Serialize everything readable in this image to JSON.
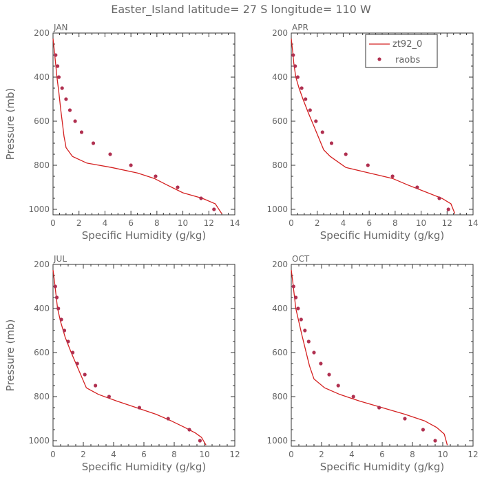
{
  "figure": {
    "title": "Easter_Island  latitude= 27 S longitude= 110 W"
  },
  "legend": {
    "model_label": "zt92_0",
    "obs_label": "raobs"
  },
  "colors": {
    "model": "#d42020",
    "obs": "#b03050",
    "axis": "#333333",
    "text": "#666666"
  },
  "chart_data": [
    {
      "type": "line",
      "title": "JAN",
      "xlabel": "Specific Humidity (g/kg)",
      "ylabel": "Pressure (mb)",
      "xlim": [
        0,
        14
      ],
      "ylim": [
        1025,
        200
      ],
      "xticks": [
        0,
        2,
        4,
        6,
        8,
        10,
        12,
        14
      ],
      "yticks": [
        200,
        400,
        600,
        800,
        1000
      ],
      "series": [
        {
          "name": "zt92_0",
          "kind": "line",
          "x": [
            0.0,
            0.1,
            0.2,
            0.3,
            0.45,
            0.6,
            0.75,
            0.85,
            0.95,
            1.0,
            1.5,
            2.6,
            4.5,
            6.5,
            7.8,
            8.8,
            10.0,
            11.5,
            12.5,
            13.0
          ],
          "y": [
            225,
            280,
            340,
            400,
            470,
            550,
            620,
            670,
            700,
            720,
            760,
            790,
            810,
            835,
            860,
            890,
            925,
            950,
            975,
            1020
          ]
        },
        {
          "name": "raobs",
          "kind": "scatter",
          "x": [
            0.2,
            0.35,
            0.45,
            0.7,
            1.0,
            1.3,
            1.7,
            2.2,
            3.1,
            4.4,
            6.0,
            7.9,
            9.6,
            11.4,
            12.4
          ],
          "y": [
            300,
            350,
            400,
            450,
            500,
            550,
            600,
            650,
            700,
            750,
            800,
            850,
            900,
            950,
            1000
          ]
        }
      ]
    },
    {
      "type": "line",
      "title": "APR",
      "xlabel": "Specific Humidity (g/kg)",
      "ylabel": "",
      "xlim": [
        0,
        14
      ],
      "ylim": [
        1025,
        200
      ],
      "xticks": [
        0,
        2,
        4,
        6,
        8,
        10,
        12,
        14
      ],
      "yticks": [
        200,
        400,
        600,
        800,
        1000
      ],
      "series": [
        {
          "name": "zt92_0",
          "kind": "line",
          "x": [
            0.0,
            0.1,
            0.2,
            0.35,
            0.6,
            0.9,
            1.3,
            1.8,
            2.5,
            3.0,
            4.2,
            6.0,
            7.8,
            9.0,
            10.3,
            11.6,
            12.3,
            12.6
          ],
          "y": [
            225,
            280,
            340,
            400,
            450,
            500,
            560,
            630,
            730,
            760,
            810,
            835,
            860,
            890,
            920,
            950,
            975,
            1020
          ]
        },
        {
          "name": "raobs",
          "kind": "scatter",
          "x": [
            0.15,
            0.3,
            0.5,
            0.8,
            1.1,
            1.45,
            1.9,
            2.4,
            3.1,
            4.2,
            5.9,
            7.8,
            9.7,
            11.4,
            12.1
          ],
          "y": [
            300,
            350,
            400,
            450,
            500,
            550,
            600,
            650,
            700,
            750,
            800,
            850,
            900,
            950,
            1000
          ]
        }
      ]
    },
    {
      "type": "line",
      "title": "JUL",
      "xlabel": "Specific Humidity (g/kg)",
      "ylabel": "Pressure (mb)",
      "xlim": [
        0,
        12
      ],
      "ylim": [
        1025,
        200
      ],
      "xticks": [
        0,
        2,
        4,
        6,
        8,
        10,
        12
      ],
      "yticks": [
        200,
        400,
        600,
        800,
        1000
      ],
      "series": [
        {
          "name": "zt92_0",
          "kind": "line",
          "x": [
            0.0,
            0.1,
            0.2,
            0.3,
            0.5,
            0.8,
            1.2,
            1.7,
            2.2,
            3.0,
            4.2,
            5.5,
            6.8,
            7.8,
            8.7,
            9.4,
            9.8,
            10.1
          ],
          "y": [
            225,
            280,
            340,
            400,
            460,
            530,
            600,
            680,
            760,
            790,
            820,
            850,
            880,
            910,
            940,
            965,
            985,
            1020
          ]
        },
        {
          "name": "raobs",
          "kind": "scatter",
          "x": [
            0.15,
            0.25,
            0.35,
            0.55,
            0.75,
            1.0,
            1.3,
            1.6,
            2.1,
            2.8,
            3.7,
            5.7,
            7.6,
            9.0,
            9.7
          ],
          "y": [
            300,
            350,
            400,
            450,
            500,
            550,
            600,
            650,
            700,
            750,
            800,
            850,
            900,
            950,
            1000
          ]
        }
      ]
    },
    {
      "type": "line",
      "title": "OCT",
      "xlabel": "Specific Humidity (g/kg)",
      "ylabel": "",
      "xlim": [
        0,
        12
      ],
      "ylim": [
        1025,
        200
      ],
      "xticks": [
        0,
        2,
        4,
        6,
        8,
        10,
        12
      ],
      "yticks": [
        200,
        400,
        600,
        800,
        1000
      ],
      "series": [
        {
          "name": "zt92_0",
          "kind": "line",
          "x": [
            0.0,
            0.1,
            0.2,
            0.3,
            0.5,
            0.7,
            0.95,
            1.2,
            1.5,
            2.2,
            3.2,
            4.5,
            6.0,
            7.5,
            8.8,
            9.6,
            10.1,
            10.3
          ],
          "y": [
            225,
            280,
            340,
            400,
            460,
            520,
            590,
            660,
            720,
            760,
            790,
            820,
            850,
            880,
            910,
            940,
            970,
            1020
          ]
        },
        {
          "name": "raobs",
          "kind": "scatter",
          "x": [
            0.15,
            0.3,
            0.45,
            0.65,
            0.9,
            1.15,
            1.5,
            1.95,
            2.5,
            3.1,
            4.1,
            5.8,
            7.5,
            8.7,
            9.5
          ],
          "y": [
            300,
            350,
            400,
            450,
            500,
            550,
            600,
            650,
            700,
            750,
            800,
            850,
            900,
            950,
            1000
          ]
        }
      ]
    }
  ]
}
